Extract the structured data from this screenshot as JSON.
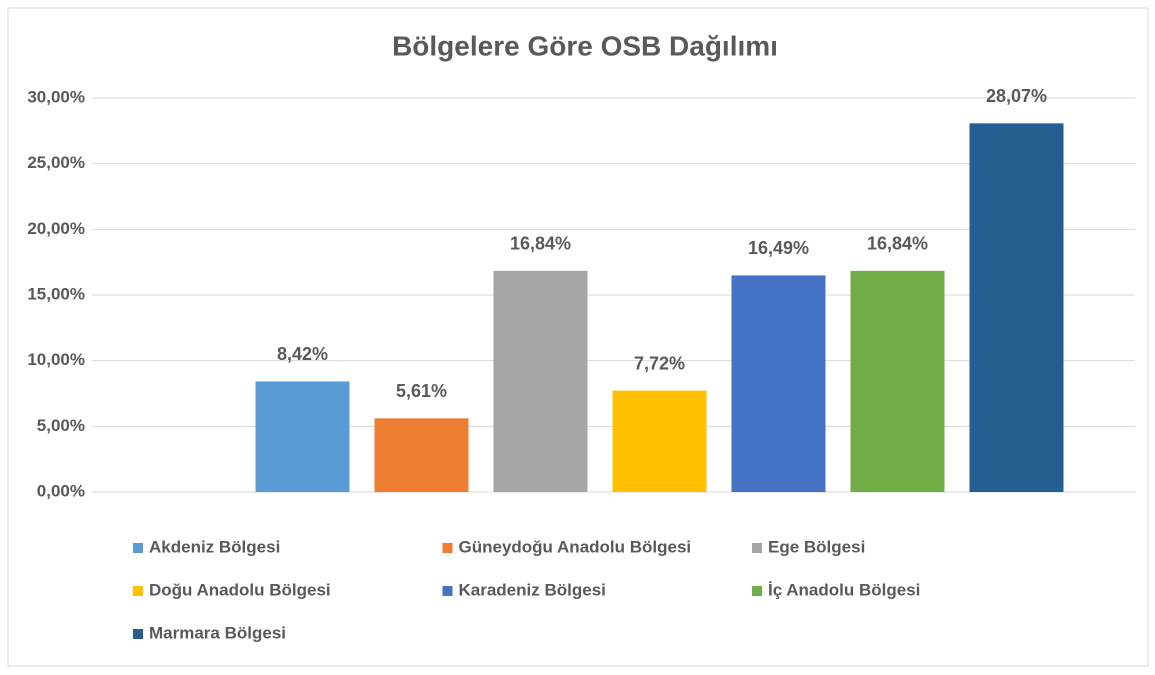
{
  "chart_data": {
    "type": "bar",
    "title": "Bölgelere Göre OSB Dağılımı",
    "categories": [
      null
    ],
    "series": [
      {
        "name": "Akdeniz Bölgesi",
        "color": "#5b9bd5",
        "values": [
          8.42
        ],
        "value_labels": [
          "8,42%"
        ]
      },
      {
        "name": "Güneydoğu Anadolu Bölgesi",
        "color": "#ed7d31",
        "values": [
          5.61
        ],
        "value_labels": [
          "5,61%"
        ]
      },
      {
        "name": "Ege Bölgesi",
        "color": "#a5a5a5",
        "values": [
          16.84
        ],
        "value_labels": [
          "16,84%"
        ]
      },
      {
        "name": "Doğu Anadolu Bölgesi",
        "color": "#ffc000",
        "values": [
          7.72
        ],
        "value_labels": [
          "7,72%"
        ]
      },
      {
        "name": "Karadeniz Bölgesi",
        "color": "#4472c4",
        "values": [
          16.49
        ],
        "value_labels": [
          "16,49%"
        ]
      },
      {
        "name": "İç Anadolu Bölgesi",
        "color": "#70ad47",
        "values": [
          16.84
        ],
        "value_labels": [
          "16,84%"
        ]
      },
      {
        "name": "Marmara Bölgesi",
        "color": "#255e91",
        "values": [
          28.07
        ],
        "value_labels": [
          "28,07%"
        ]
      }
    ],
    "ylim": [
      0,
      30
    ],
    "yticks": [
      {
        "value": 0,
        "label": "0,00%"
      },
      {
        "value": 5,
        "label": "5,00%"
      },
      {
        "value": 10,
        "label": "10,00%"
      },
      {
        "value": 15,
        "label": "15,00%"
      },
      {
        "value": 20,
        "label": "20,00%"
      },
      {
        "value": 25,
        "label": "25,00%"
      },
      {
        "value": 30,
        "label": "30,00%"
      }
    ],
    "grid": true,
    "legend": "bottom"
  }
}
